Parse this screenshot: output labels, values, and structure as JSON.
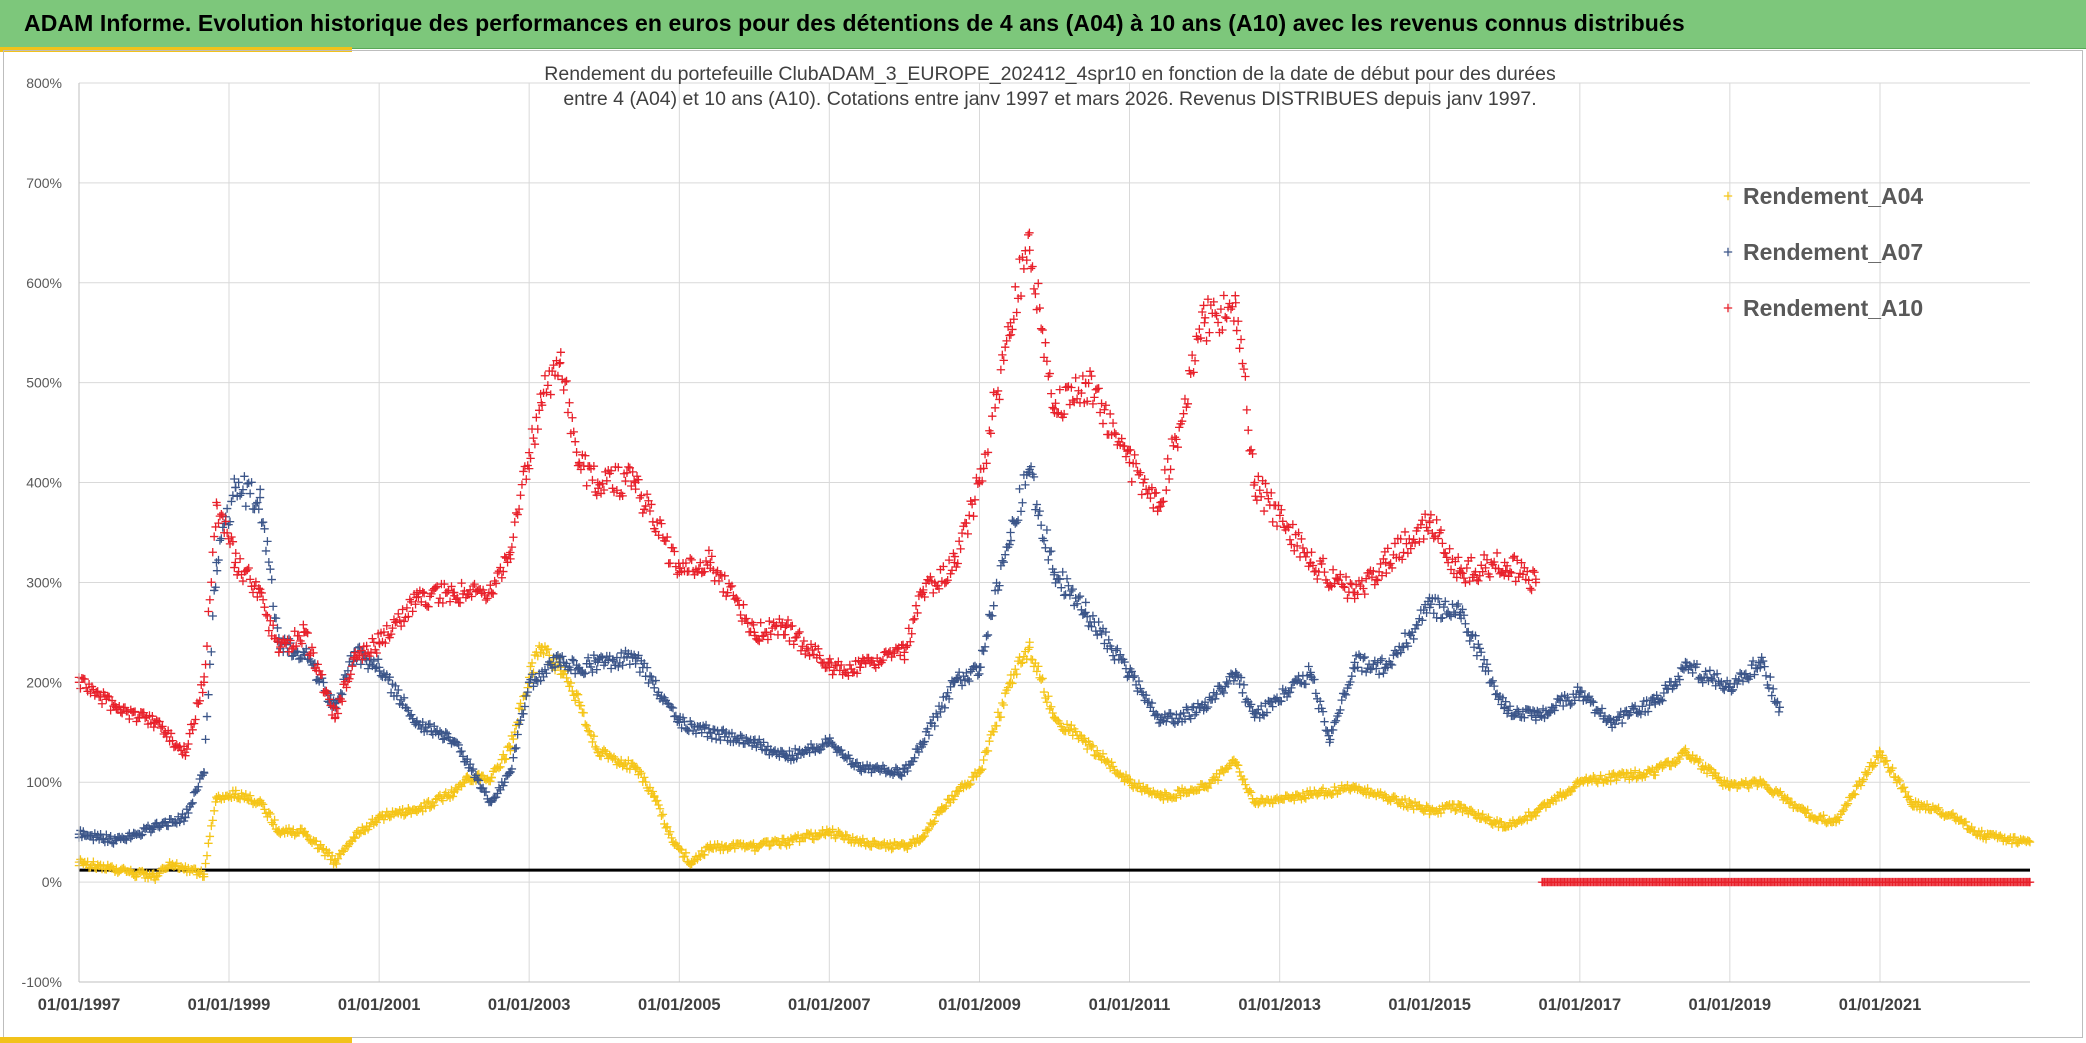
{
  "header": {
    "title": "ADAM Informe. Evolution historique des performances en euros pour des détentions de 4 ans (A04) à 10 ans (A10) avec les revenus connus distribués"
  },
  "colors": {
    "header_bg": "#7dc77b",
    "accent": "#f2c21b",
    "A04": "#f5c518",
    "A07": "#3b5589",
    "A10": "#e8202a",
    "baseline": "#000000"
  },
  "chart_data": {
    "type": "scatter",
    "title": "Rendement du portefeuille ClubADAM_3_EUROPE_202412_4spr10  en fonction de la date de début pour des durées",
    "subtitle": "entre 4 (A04) et 10 ans (A10). Cotations entre janv 1997 et mars 2026. Revenus DISTRIBUES depuis janv 1997.",
    "marker": "+",
    "x_tick_labels": [
      "01/01/1997",
      "01/01/1999",
      "01/01/2001",
      "01/01/2003",
      "01/01/2005",
      "01/01/2007",
      "01/01/2009",
      "01/01/2011",
      "01/01/2013",
      "01/01/2015",
      "01/01/2017",
      "01/01/2019",
      "01/01/2021"
    ],
    "xlim": [
      "1997-01-01",
      "2023-01-01"
    ],
    "ylim": [
      -100,
      800
    ],
    "y_ticks": [
      -100,
      0,
      100,
      200,
      300,
      400,
      500,
      600,
      700,
      800
    ],
    "y_tick_labels": [
      "-100%",
      "0%",
      "100%",
      "200%",
      "300%",
      "400%",
      "500%",
      "600%",
      "700%",
      "800%"
    ],
    "grid": true,
    "legend_position": "top-right",
    "reference_line": 12,
    "series": [
      {
        "name": "Rendement_A04",
        "color": "#f5c518",
        "points": [
          [
            "1997-01-01",
            20
          ],
          [
            "1997-07-01",
            12
          ],
          [
            "1998-01-01",
            5
          ],
          [
            "1998-04-01",
            18
          ],
          [
            "1998-09-01",
            8
          ],
          [
            "1998-11-01",
            85
          ],
          [
            "1999-02-01",
            88
          ],
          [
            "1999-06-01",
            80
          ],
          [
            "1999-09-01",
            52
          ],
          [
            "2000-01-01",
            50
          ],
          [
            "2000-06-01",
            20
          ],
          [
            "2000-09-01",
            45
          ],
          [
            "2001-01-01",
            65
          ],
          [
            "2001-07-01",
            72
          ],
          [
            "2002-01-01",
            90
          ],
          [
            "2002-03-01",
            105
          ],
          [
            "2002-07-01",
            105
          ],
          [
            "2002-10-01",
            135
          ],
          [
            "2003-01-01",
            205
          ],
          [
            "2003-03-01",
            235
          ],
          [
            "2003-06-01",
            215
          ],
          [
            "2003-09-01",
            180
          ],
          [
            "2003-12-01",
            130
          ],
          [
            "2004-06-01",
            115
          ],
          [
            "2004-09-01",
            85
          ],
          [
            "2004-12-01",
            40
          ],
          [
            "2005-03-01",
            20
          ],
          [
            "2005-06-01",
            35
          ],
          [
            "2006-01-01",
            35
          ],
          [
            "2006-06-01",
            40
          ],
          [
            "2007-01-01",
            50
          ],
          [
            "2007-06-01",
            40
          ],
          [
            "2008-01-01",
            35
          ],
          [
            "2008-04-01",
            45
          ],
          [
            "2008-07-01",
            75
          ],
          [
            "2009-01-01",
            110
          ],
          [
            "2009-06-01",
            200
          ],
          [
            "2009-09-01",
            235
          ],
          [
            "2010-01-01",
            165
          ],
          [
            "2010-06-01",
            140
          ],
          [
            "2011-01-01",
            100
          ],
          [
            "2011-06-01",
            85
          ],
          [
            "2012-01-01",
            95
          ],
          [
            "2012-06-01",
            120
          ],
          [
            "2012-09-01",
            80
          ],
          [
            "2013-06-01",
            88
          ],
          [
            "2014-01-01",
            95
          ],
          [
            "2014-06-01",
            85
          ],
          [
            "2015-01-01",
            72
          ],
          [
            "2015-06-01",
            75
          ],
          [
            "2016-01-01",
            55
          ],
          [
            "2016-06-01",
            70
          ],
          [
            "2017-01-01",
            100
          ],
          [
            "2017-06-01",
            105
          ],
          [
            "2018-01-01",
            110
          ],
          [
            "2018-06-01",
            130
          ],
          [
            "2019-01-01",
            95
          ],
          [
            "2019-06-01",
            100
          ],
          [
            "2020-01-01",
            70
          ],
          [
            "2020-06-01",
            60
          ],
          [
            "2021-01-01",
            130
          ],
          [
            "2021-06-01",
            80
          ],
          [
            "2022-01-01",
            65
          ],
          [
            "2022-06-01",
            45
          ],
          [
            "2023-01-01",
            40
          ]
        ]
      },
      {
        "name": "Rendement_A07",
        "color": "#3b5589",
        "points": [
          [
            "1997-01-01",
            48
          ],
          [
            "1997-07-01",
            42
          ],
          [
            "1998-01-01",
            55
          ],
          [
            "1998-06-01",
            65
          ],
          [
            "1998-09-01",
            110
          ],
          [
            "1998-11-01",
            320
          ],
          [
            "1999-02-01",
            395
          ],
          [
            "1999-06-01",
            385
          ],
          [
            "1999-09-01",
            240
          ],
          [
            "2000-01-01",
            230
          ],
          [
            "2000-06-01",
            175
          ],
          [
            "2000-09-01",
            230
          ],
          [
            "2001-01-01",
            215
          ],
          [
            "2001-07-01",
            160
          ],
          [
            "2002-01-01",
            140
          ],
          [
            "2002-07-01",
            80
          ],
          [
            "2002-10-01",
            110
          ],
          [
            "2003-01-01",
            200
          ],
          [
            "2003-06-01",
            225
          ],
          [
            "2003-09-01",
            215
          ],
          [
            "2003-12-01",
            220
          ],
          [
            "2004-06-01",
            225
          ],
          [
            "2005-01-01",
            160
          ],
          [
            "2005-06-01",
            150
          ],
          [
            "2006-01-01",
            140
          ],
          [
            "2006-06-01",
            125
          ],
          [
            "2007-01-01",
            140
          ],
          [
            "2007-06-01",
            115
          ],
          [
            "2008-01-01",
            110
          ],
          [
            "2008-04-01",
            140
          ],
          [
            "2008-09-01",
            200
          ],
          [
            "2009-01-01",
            215
          ],
          [
            "2009-06-01",
            350
          ],
          [
            "2009-09-01",
            410
          ],
          [
            "2010-01-01",
            310
          ],
          [
            "2010-06-01",
            270
          ],
          [
            "2011-01-01",
            210
          ],
          [
            "2011-06-01",
            160
          ],
          [
            "2012-01-01",
            175
          ],
          [
            "2012-06-01",
            210
          ],
          [
            "2012-09-01",
            165
          ],
          [
            "2013-06-01",
            210
          ],
          [
            "2013-09-01",
            140
          ],
          [
            "2014-01-01",
            220
          ],
          [
            "2014-06-01",
            215
          ],
          [
            "2015-01-01",
            275
          ],
          [
            "2015-06-01",
            270
          ],
          [
            "2016-01-01",
            175
          ],
          [
            "2016-06-01",
            165
          ],
          [
            "2017-01-01",
            190
          ],
          [
            "2017-06-01",
            160
          ],
          [
            "2018-01-01",
            180
          ],
          [
            "2018-06-01",
            215
          ],
          [
            "2019-01-01",
            195
          ],
          [
            "2019-06-01",
            220
          ],
          [
            "2019-09-01",
            175
          ]
        ]
      },
      {
        "name": "Rendement_A10",
        "color": "#e8202a",
        "points": [
          [
            "1997-01-01",
            200
          ],
          [
            "1997-07-01",
            175
          ],
          [
            "1998-01-01",
            160
          ],
          [
            "1998-06-01",
            130
          ],
          [
            "1998-09-01",
            200
          ],
          [
            "1998-11-01",
            380
          ],
          [
            "1999-02-01",
            320
          ],
          [
            "1999-06-01",
            290
          ],
          [
            "1999-09-01",
            230
          ],
          [
            "2000-01-01",
            250
          ],
          [
            "2000-06-01",
            165
          ],
          [
            "2000-09-01",
            225
          ],
          [
            "2001-01-01",
            240
          ],
          [
            "2001-07-01",
            285
          ],
          [
            "2002-01-01",
            290
          ],
          [
            "2002-07-01",
            290
          ],
          [
            "2002-10-01",
            330
          ],
          [
            "2003-01-01",
            430
          ],
          [
            "2003-03-01",
            480
          ],
          [
            "2003-06-01",
            520
          ],
          [
            "2003-09-01",
            420
          ],
          [
            "2003-12-01",
            400
          ],
          [
            "2004-06-01",
            400
          ],
          [
            "2005-01-01",
            310
          ],
          [
            "2005-06-01",
            320
          ],
          [
            "2006-01-01",
            250
          ],
          [
            "2006-06-01",
            255
          ],
          [
            "2007-01-01",
            215
          ],
          [
            "2007-06-01",
            215
          ],
          [
            "2008-01-01",
            230
          ],
          [
            "2008-04-01",
            290
          ],
          [
            "2008-09-01",
            320
          ],
          [
            "2009-01-01",
            400
          ],
          [
            "2009-06-01",
            560
          ],
          [
            "2009-09-01",
            650
          ],
          [
            "2010-01-01",
            470
          ],
          [
            "2010-06-01",
            500
          ],
          [
            "2011-01-01",
            420
          ],
          [
            "2011-06-01",
            380
          ],
          [
            "2012-01-01",
            560
          ],
          [
            "2012-06-01",
            580
          ],
          [
            "2012-09-01",
            400
          ],
          [
            "2013-06-01",
            320
          ],
          [
            "2014-01-01",
            290
          ],
          [
            "2014-06-01",
            320
          ],
          [
            "2015-01-01",
            360
          ],
          [
            "2015-06-01",
            310
          ],
          [
            "2016-01-01",
            320
          ],
          [
            "2016-06-01",
            300
          ],
          [
            "2016-07-01",
            0
          ],
          [
            "2023-01-01",
            0
          ]
        ]
      }
    ]
  }
}
